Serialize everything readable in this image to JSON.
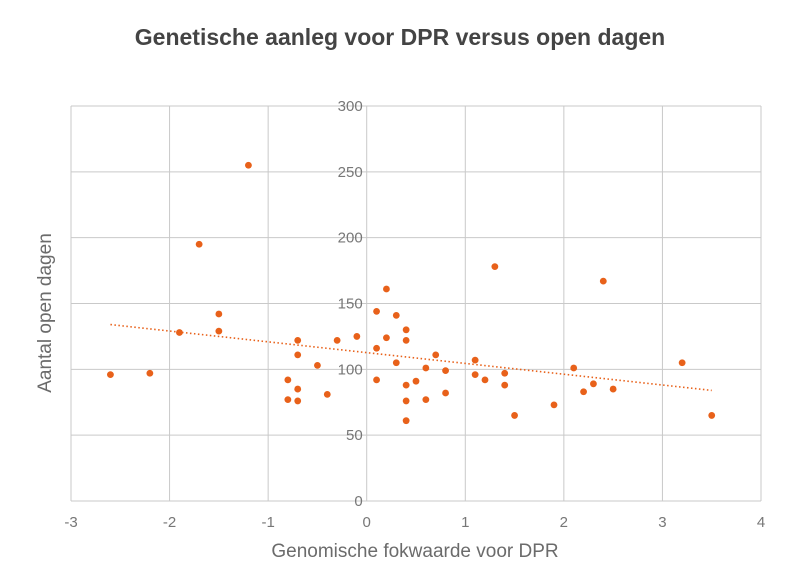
{
  "chart_data": {
    "type": "scatter",
    "title": "Genetische aanleg voor DPR versus open dagen",
    "xlabel": "Genomische fokwaarde voor DPR",
    "ylabel": "Aantal open dagen",
    "xlim": [
      -3,
      4
    ],
    "ylim": [
      0,
      300
    ],
    "xticks": [
      "-3",
      "-2",
      "-1",
      "0",
      "1",
      "2",
      "3",
      "4"
    ],
    "yticks": [
      "0",
      "50",
      "100",
      "150",
      "200",
      "250",
      "300"
    ],
    "grid": true,
    "point_color": "#e8611a",
    "points": [
      [
        -2.6,
        96
      ],
      [
        -2.2,
        97
      ],
      [
        -1.9,
        128
      ],
      [
        -1.7,
        195
      ],
      [
        -1.5,
        142
      ],
      [
        -1.5,
        129
      ],
      [
        -1.2,
        255
      ],
      [
        -0.8,
        92
      ],
      [
        -0.8,
        77
      ],
      [
        -0.7,
        122
      ],
      [
        -0.7,
        111
      ],
      [
        -0.7,
        85
      ],
      [
        -0.7,
        76
      ],
      [
        -0.5,
        103
      ],
      [
        -0.4,
        81
      ],
      [
        -0.3,
        122
      ],
      [
        -0.1,
        125
      ],
      [
        0.1,
        144
      ],
      [
        0.1,
        116
      ],
      [
        0.1,
        92
      ],
      [
        0.2,
        161
      ],
      [
        0.2,
        124
      ],
      [
        0.3,
        141
      ],
      [
        0.3,
        105
      ],
      [
        0.4,
        130
      ],
      [
        0.4,
        122
      ],
      [
        0.4,
        88
      ],
      [
        0.4,
        76
      ],
      [
        0.4,
        61
      ],
      [
        0.5,
        91
      ],
      [
        0.6,
        101
      ],
      [
        0.6,
        77
      ],
      [
        0.7,
        111
      ],
      [
        0.8,
        99
      ],
      [
        0.8,
        82
      ],
      [
        1.1,
        107
      ],
      [
        1.1,
        96
      ],
      [
        1.2,
        92
      ],
      [
        1.3,
        178
      ],
      [
        1.4,
        97
      ],
      [
        1.4,
        88
      ],
      [
        1.5,
        65
      ],
      [
        1.9,
        73
      ],
      [
        2.1,
        101
      ],
      [
        2.2,
        83
      ],
      [
        2.3,
        89
      ],
      [
        2.4,
        167
      ],
      [
        2.5,
        85
      ],
      [
        3.2,
        105
      ],
      [
        3.5,
        65
      ]
    ],
    "trendline": {
      "style": "dotted",
      "x": [
        -2.6,
        3.5
      ],
      "y": [
        134,
        84
      ]
    }
  }
}
